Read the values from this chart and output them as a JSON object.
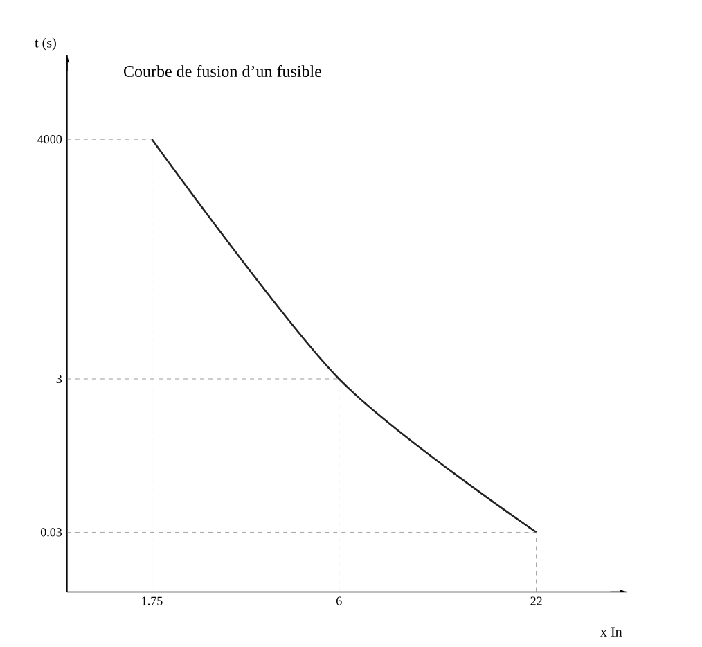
{
  "chart_data": {
    "type": "line",
    "title": "Courbe de fusion d’un fusible",
    "xlabel": "x In",
    "ylabel": "t (s)",
    "log": "xy",
    "xlim": [
      1,
      40
    ],
    "ylim": [
      0.005,
      50000
    ],
    "xticks": [
      1.75,
      6,
      22
    ],
    "yticks": [
      0.03,
      3,
      4000
    ],
    "series": [
      {
        "color": "#222222",
        "x": [
          1.75,
          6,
          22
        ],
        "values": [
          4000,
          3,
          0.03
        ]
      }
    ],
    "ref_lines": [
      {
        "axis": "y",
        "value": 4000,
        "line_style": "dashed"
      },
      {
        "axis": "y",
        "value": 3,
        "line_style": "dashed"
      },
      {
        "axis": "y",
        "value": 0.03,
        "line_style": "dashed"
      },
      {
        "axis": "x",
        "value": 1.75,
        "line_style": "dashed"
      },
      {
        "axis": "x",
        "value": 6,
        "line_style": "dashed"
      },
      {
        "axis": "x",
        "value": 22,
        "line_style": "dashed"
      }
    ],
    "grid": false,
    "marker": "none"
  }
}
